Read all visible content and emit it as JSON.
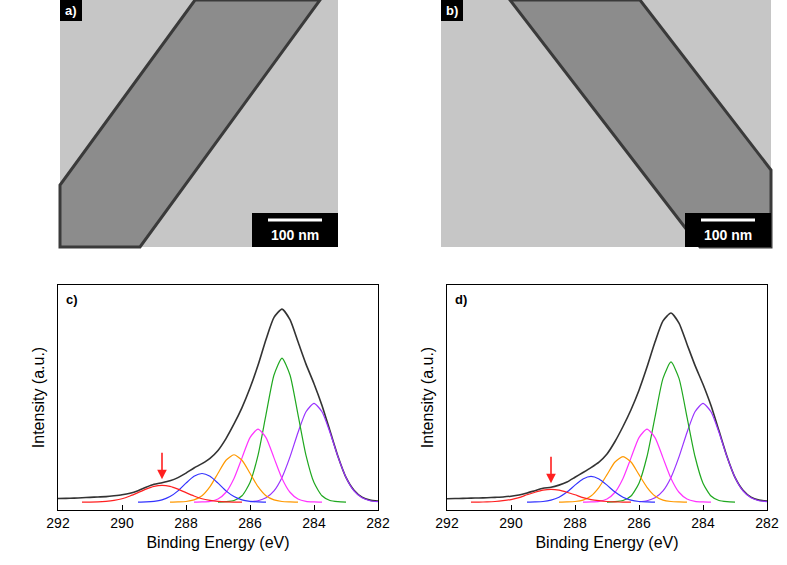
{
  "panels": [
    {
      "panel_label": "a)",
      "scale_bar": "100 nm"
    },
    {
      "panel_label": "b)",
      "scale_bar": "100 nm"
    }
  ],
  "chart_data": [
    {
      "type": "line",
      "panel_label": "c)",
      "xlabel": "Binding Energy (eV)",
      "ylabel": "Intensity (a.u.)",
      "xlim": [
        292,
        282
      ],
      "xticks": [
        292,
        290,
        288,
        286,
        284,
        282
      ],
      "ylim": [
        -0.04,
        1.1
      ],
      "tick_labels": "x",
      "grid": false,
      "series": [
        {
          "color": "#333333",
          "x": [
            282,
            282.25,
            282.5,
            282.75,
            283,
            283.25,
            283.5,
            283.75,
            284,
            284.25,
            284.5,
            284.75,
            285,
            285.25,
            285.5,
            285.75,
            286,
            286.25,
            286.5,
            286.75,
            287,
            287.25,
            287.5,
            287.75,
            288,
            288.25,
            288.5,
            288.75,
            289,
            289.25,
            289.5,
            289.75,
            290,
            290.25,
            290.5,
            290.75,
            291,
            291.25,
            291.5,
            291.75,
            292
          ],
          "values": [
            0.005,
            0.01,
            0.025,
            0.06,
            0.125,
            0.231,
            0.361,
            0.49,
            0.6,
            0.699,
            0.812,
            0.924,
            0.978,
            0.936,
            0.824,
            0.693,
            0.578,
            0.479,
            0.396,
            0.322,
            0.262,
            0.222,
            0.195,
            0.173,
            0.147,
            0.124,
            0.108,
            0.098,
            0.09,
            0.075,
            0.058,
            0.045,
            0.037,
            0.032,
            0.028,
            0.026,
            0.024,
            0.022,
            0.02,
            0.019,
            0.018
          ]
        },
        {
          "color": "#9933ff",
          "x": [
            282,
            282.25,
            282.5,
            282.75,
            283,
            283.25,
            283.5,
            283.75,
            284,
            284.25,
            284.5,
            284.75,
            285,
            285.25,
            285.5,
            285.75,
            286
          ],
          "values": [
            0.002,
            0.007,
            0.022,
            0.057,
            0.125,
            0.229,
            0.353,
            0.458,
            0.5,
            0.458,
            0.353,
            0.229,
            0.125,
            0.057,
            0.022,
            0.007,
            0.002
          ]
        },
        {
          "color": "#1fa81f",
          "x": [
            283,
            283.25,
            283.5,
            283.75,
            284,
            284.25,
            284.5,
            284.75,
            285,
            285.25,
            285.5,
            285.75,
            286,
            286.25,
            286.5,
            286.75,
            287
          ],
          "values": [
            0,
            0.002,
            0.008,
            0.032,
            0.099,
            0.237,
            0.443,
            0.644,
            0.73,
            0.644,
            0.443,
            0.237,
            0.099,
            0.032,
            0.008,
            0.002,
            0
          ]
        },
        {
          "color": "#ff33ff",
          "x": [
            283.75,
            284,
            284.25,
            284.5,
            284.75,
            285,
            285.25,
            285.5,
            285.75,
            286,
            286.25,
            286.5,
            286.75,
            287,
            287.25,
            287.5,
            287.75
          ],
          "values": [
            0,
            0.001,
            0.004,
            0.016,
            0.05,
            0.12,
            0.224,
            0.327,
            0.37,
            0.327,
            0.224,
            0.12,
            0.05,
            0.016,
            0.004,
            0.001,
            0
          ]
        },
        {
          "color": "#ff9900",
          "x": [
            284.5,
            284.75,
            285,
            285.25,
            285.5,
            285.75,
            286,
            286.25,
            286.5,
            286.75,
            287,
            287.25,
            287.5,
            287.75,
            288,
            288.25,
            288.5
          ],
          "values": [
            0,
            0.001,
            0.003,
            0.011,
            0.032,
            0.078,
            0.146,
            0.212,
            0.24,
            0.212,
            0.146,
            0.078,
            0.032,
            0.011,
            0.003,
            0.001,
            0
          ]
        },
        {
          "color": "#3333ff",
          "x": [
            285.5,
            285.75,
            286,
            286.25,
            286.5,
            286.75,
            287,
            287.25,
            287.5,
            287.75,
            288,
            288.25,
            288.5,
            288.75,
            289,
            289.25,
            289.5
          ],
          "values": [
            0,
            0.001,
            0.004,
            0.011,
            0.028,
            0.057,
            0.096,
            0.131,
            0.145,
            0.131,
            0.096,
            0.057,
            0.028,
            0.011,
            0.004,
            0.001,
            0
          ]
        },
        {
          "color": "#ff2020",
          "x": [
            286.25,
            286.5,
            286.75,
            287,
            287.25,
            287.5,
            287.75,
            288,
            288.25,
            288.5,
            288.75,
            289,
            289.25,
            289.5,
            289.75,
            290,
            290.25,
            290.5,
            290.75,
            291,
            291.25
          ],
          "values": [
            0,
            0,
            0.001,
            0.004,
            0.009,
            0.017,
            0.031,
            0.048,
            0.066,
            0.08,
            0.085,
            0.08,
            0.066,
            0.048,
            0.031,
            0.017,
            0.009,
            0.004,
            0.001,
            0,
            0
          ]
        }
      ]
    },
    {
      "type": "line",
      "panel_label": "d)",
      "xlabel": "Binding Energy (eV)",
      "ylabel": "Intensity (a.u.)",
      "xlim": [
        292,
        282
      ],
      "xticks": [
        292,
        290,
        288,
        286,
        284,
        282
      ],
      "ylim": [
        -0.04,
        1.1
      ],
      "tick_labels": "x",
      "grid": false,
      "series": [
        {
          "color": "#333333",
          "x": [
            282,
            282.25,
            282.5,
            282.75,
            283,
            283.25,
            283.5,
            283.75,
            284,
            284.25,
            284.5,
            284.75,
            285,
            285.25,
            285.5,
            285.75,
            286,
            286.25,
            286.5,
            286.75,
            287,
            287.25,
            287.5,
            287.75,
            288,
            288.25,
            288.5,
            288.75,
            289,
            289.25,
            289.5,
            289.75,
            290,
            290.25,
            290.5,
            290.75,
            291,
            291.25,
            291.5,
            291.75,
            292
          ],
          "values": [
            0.005,
            0.01,
            0.025,
            0.06,
            0.125,
            0.231,
            0.361,
            0.489,
            0.597,
            0.693,
            0.8,
            0.907,
            0.958,
            0.918,
            0.811,
            0.684,
            0.567,
            0.468,
            0.383,
            0.307,
            0.244,
            0.203,
            0.175,
            0.15,
            0.126,
            0.102,
            0.086,
            0.075,
            0.07,
            0.058,
            0.046,
            0.036,
            0.03,
            0.026,
            0.024,
            0.022,
            0.021,
            0.02,
            0.019,
            0.018,
            0.017
          ]
        },
        {
          "color": "#9933ff",
          "x": [
            282,
            282.25,
            282.5,
            282.75,
            283,
            283.25,
            283.5,
            283.75,
            284,
            284.25,
            284.5,
            284.75,
            285,
            285.25,
            285.5,
            285.75,
            286
          ],
          "values": [
            0.002,
            0.007,
            0.022,
            0.057,
            0.125,
            0.229,
            0.353,
            0.458,
            0.5,
            0.458,
            0.353,
            0.229,
            0.125,
            0.057,
            0.022,
            0.007,
            0.002
          ]
        },
        {
          "color": "#1fa81f",
          "x": [
            283,
            283.25,
            283.5,
            283.75,
            284,
            284.25,
            284.5,
            284.75,
            285,
            285.25,
            285.5,
            285.75,
            286,
            286.25,
            286.5,
            286.75,
            287
          ],
          "values": [
            0,
            0.002,
            0.008,
            0.031,
            0.096,
            0.231,
            0.431,
            0.627,
            0.71,
            0.627,
            0.431,
            0.231,
            0.096,
            0.031,
            0.008,
            0.002,
            0
          ]
        },
        {
          "color": "#ff33ff",
          "x": [
            283.75,
            284,
            284.25,
            284.5,
            284.75,
            285,
            285.25,
            285.5,
            285.75,
            286,
            286.25,
            286.5,
            286.75,
            287,
            287.25,
            287.5,
            287.75
          ],
          "values": [
            0,
            0.001,
            0.004,
            0.016,
            0.05,
            0.12,
            0.224,
            0.327,
            0.37,
            0.327,
            0.224,
            0.12,
            0.05,
            0.016,
            0.004,
            0.001,
            0
          ]
        },
        {
          "color": "#ff9900",
          "x": [
            284.5,
            284.75,
            285,
            285.25,
            285.5,
            285.75,
            286,
            286.25,
            286.5,
            286.75,
            287,
            287.25,
            287.5,
            287.75,
            288,
            288.25,
            288.5
          ],
          "values": [
            0,
            0.001,
            0.003,
            0.01,
            0.031,
            0.075,
            0.139,
            0.203,
            0.23,
            0.203,
            0.139,
            0.075,
            0.031,
            0.01,
            0.003,
            0.001,
            0
          ]
        },
        {
          "color": "#3333ff",
          "x": [
            285.5,
            285.75,
            286,
            286.25,
            286.5,
            286.75,
            287,
            287.25,
            287.5,
            287.75,
            288,
            288.25,
            288.5,
            288.75,
            289,
            289.25,
            289.5
          ],
          "values": [
            0,
            0.001,
            0.003,
            0.01,
            0.025,
            0.051,
            0.086,
            0.117,
            0.13,
            0.117,
            0.086,
            0.051,
            0.025,
            0.01,
            0.003,
            0.001,
            0
          ]
        },
        {
          "color": "#ff2020",
          "x": [
            286.25,
            286.5,
            286.75,
            287,
            287.25,
            287.5,
            287.75,
            288,
            288.25,
            288.5,
            288.75,
            289,
            289.25,
            289.5,
            289.75,
            290,
            290.25,
            290.5,
            290.75,
            291,
            291.25
          ],
          "values": [
            0,
            0,
            0.001,
            0.003,
            0.007,
            0.013,
            0.023,
            0.037,
            0.05,
            0.061,
            0.065,
            0.061,
            0.05,
            0.037,
            0.023,
            0.013,
            0.007,
            0.003,
            0.001,
            0,
            0
          ]
        }
      ]
    }
  ]
}
